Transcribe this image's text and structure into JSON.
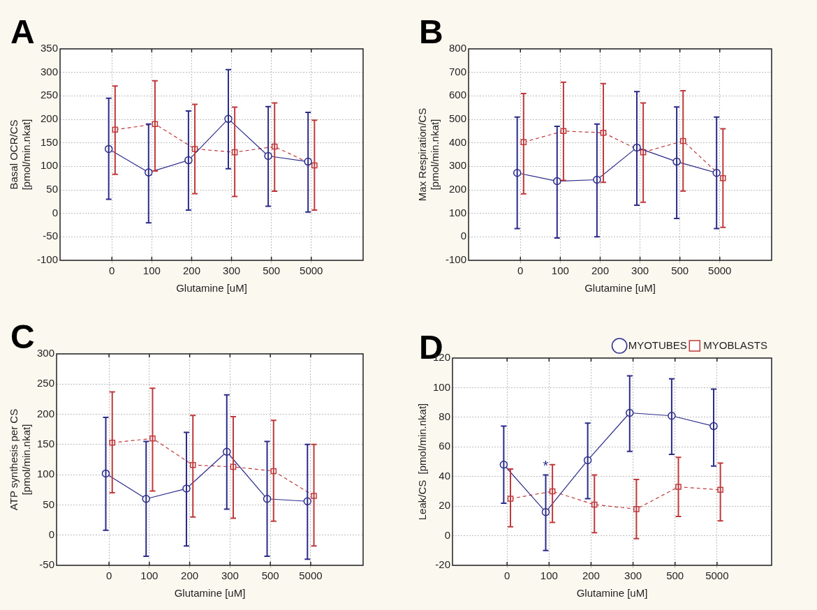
{
  "chart_data": [
    {
      "type": "line",
      "title": "A",
      "xlabel": "Glutamine [uM]",
      "ylabel": "Basal OCR/CS\n[pmol/min.nkat]",
      "categories": [
        "0",
        "100",
        "200",
        "300",
        "500",
        "5000"
      ],
      "ylim": [
        -100,
        350
      ],
      "yticks": [
        -100,
        -50,
        0,
        50,
        100,
        150,
        200,
        250,
        300,
        350
      ],
      "grid": true,
      "legend": false,
      "series": [
        {
          "color": "#2b2b8a",
          "marker": "circle",
          "line_style": "solid",
          "values": [
            137,
            87,
            113,
            201,
            122,
            110
          ],
          "errors": [
            [
              30,
              245
            ],
            [
              -20,
              190
            ],
            [
              7,
              218
            ],
            [
              95,
              306
            ],
            [
              15,
              227
            ],
            [
              3,
              215
            ]
          ]
        },
        {
          "color": "#c0393b",
          "marker": "square",
          "line_style": "dashed",
          "values": [
            178,
            190,
            137,
            130,
            142,
            102
          ],
          "errors": [
            [
              83,
              271
            ],
            [
              90,
              282
            ],
            [
              42,
              232
            ],
            [
              36,
              226
            ],
            [
              47,
              235
            ],
            [
              7,
              198
            ]
          ]
        }
      ]
    },
    {
      "type": "line",
      "title": "B",
      "xlabel": "Glutamine [uM]",
      "ylabel": "Max Respiration/CS\n[pmol/min.nkat]",
      "categories": [
        "0",
        "100",
        "200",
        "300",
        "500",
        "5000"
      ],
      "ylim": [
        -100,
        800
      ],
      "yticks": [
        -100,
        0,
        100,
        200,
        300,
        400,
        500,
        600,
        700,
        800
      ],
      "grid": true,
      "legend": false,
      "series": [
        {
          "color": "#2b2b8a",
          "marker": "circle",
          "line_style": "solid",
          "values": [
            272,
            237,
            243,
            380,
            320,
            272
          ],
          "errors": [
            [
              35,
              510
            ],
            [
              -5,
              470
            ],
            [
              0,
              480
            ],
            [
              135,
              618
            ],
            [
              78,
              553
            ],
            [
              35,
              510
            ]
          ]
        },
        {
          "color": "#c0393b",
          "marker": "square",
          "line_style": "dashed",
          "values": [
            403,
            450,
            443,
            360,
            408,
            250
          ],
          "errors": [
            [
              183,
              610
            ],
            [
              240,
              658
            ],
            [
              232,
              652
            ],
            [
              147,
              570
            ],
            [
              195,
              622
            ],
            [
              40,
              460
            ]
          ]
        }
      ]
    },
    {
      "type": "line",
      "title": "C",
      "xlabel": "Glutamine [uM]",
      "ylabel": "ATP synthesis per CS\n[pmol/min.nkat]",
      "categories": [
        "0",
        "100",
        "200",
        "300",
        "500",
        "5000"
      ],
      "ylim": [
        -50,
        300
      ],
      "yticks": [
        -50,
        0,
        50,
        100,
        150,
        200,
        250,
        300
      ],
      "grid": true,
      "legend": false,
      "series": [
        {
          "color": "#2b2b8a",
          "marker": "circle",
          "line_style": "solid",
          "values": [
            102,
            60,
            77,
            138,
            60,
            56
          ],
          "errors": [
            [
              8,
              195
            ],
            [
              -35,
              155
            ],
            [
              -18,
              170
            ],
            [
              43,
              232
            ],
            [
              -35,
              155
            ],
            [
              -40,
              150
            ]
          ]
        },
        {
          "color": "#c0393b",
          "marker": "square",
          "line_style": "dashed",
          "values": [
            153,
            160,
            116,
            113,
            106,
            65
          ],
          "errors": [
            [
              70,
              237
            ],
            [
              73,
              243
            ],
            [
              30,
              198
            ],
            [
              28,
              196
            ],
            [
              23,
              190
            ],
            [
              -18,
              150
            ]
          ]
        }
      ]
    },
    {
      "type": "line",
      "title": "D",
      "xlabel": "Glutamine [uM]",
      "ylabel": "Leak/CS  [pmol/min.nkat]",
      "categories": [
        "0",
        "100",
        "200",
        "300",
        "500",
        "5000"
      ],
      "ylim": [
        -20,
        120
      ],
      "yticks": [
        -20,
        0,
        20,
        40,
        60,
        80,
        100,
        120
      ],
      "grid": true,
      "legend": "top right",
      "annotations": [
        "*"
      ],
      "series": [
        {
          "name": "MYOTUBES",
          "color": "#2b2b8a",
          "marker": "circle",
          "line_style": "solid",
          "values": [
            48,
            16,
            51,
            83,
            81,
            74
          ],
          "errors": [
            [
              22,
              74
            ],
            [
              -10,
              41
            ],
            [
              25,
              76
            ],
            [
              57,
              108
            ],
            [
              55,
              106
            ],
            [
              47,
              99
            ]
          ]
        },
        {
          "name": "MYOBLASTS",
          "color": "#c0393b",
          "marker": "square",
          "line_style": "dashed",
          "values": [
            25,
            30,
            21,
            18,
            33,
            31
          ],
          "errors": [
            [
              6,
              45
            ],
            [
              9,
              48
            ],
            [
              2,
              41
            ],
            [
              -2,
              38
            ],
            [
              13,
              53
            ],
            [
              10,
              49
            ]
          ]
        }
      ]
    }
  ]
}
